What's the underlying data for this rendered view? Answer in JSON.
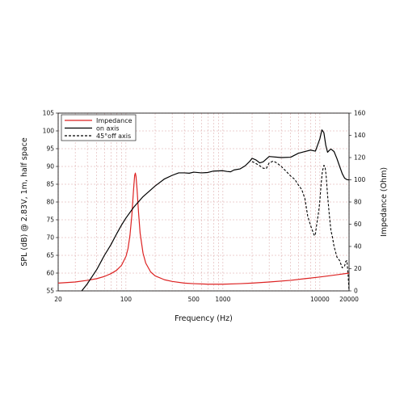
{
  "chart_data": {
    "type": "line",
    "xlabel": "Frequency (Hz)",
    "ylabel": "SPL (dB) @ 2.83V, 1m, half space",
    "y2label": "Impedance (Ohm)",
    "x_scale": "log",
    "xlim": [
      20,
      20000
    ],
    "ylim": [
      55,
      105
    ],
    "y2lim": [
      0,
      160
    ],
    "x_ticks": [
      20,
      100,
      500,
      1000,
      10000,
      20000
    ],
    "x_tick_labels": [
      "20",
      "100",
      "500",
      "1000",
      "10000",
      "20000"
    ],
    "y_ticks": [
      55,
      60,
      65,
      70,
      75,
      80,
      85,
      90,
      95,
      100,
      105
    ],
    "y_tick_labels": [
      "55",
      "60",
      "65",
      "70",
      "75",
      "80",
      "85",
      "90",
      "95",
      "100",
      "105"
    ],
    "y2_ticks": [
      0,
      20,
      40,
      60,
      80,
      100,
      120,
      140,
      160
    ],
    "y2_tick_labels": [
      "0",
      "20",
      "40",
      "60",
      "80",
      "100",
      "120",
      "140",
      "160"
    ],
    "grid": true,
    "legend_position": "top-left",
    "series": [
      {
        "name": "Impedance",
        "axis": "right",
        "color": "#dd2222",
        "dash": "solid",
        "x": [
          20,
          30,
          40,
          50,
          60,
          70,
          80,
          90,
          100,
          105,
          110,
          115,
          120,
          123,
          125,
          127,
          130,
          135,
          140,
          150,
          160,
          180,
          200,
          250,
          300,
          400,
          500,
          700,
          1000,
          1500,
          2000,
          3000,
          5000,
          7000,
          10000,
          15000,
          20000
        ],
        "y": [
          7,
          8,
          9.5,
          11,
          13,
          15.5,
          18.5,
          23,
          31,
          38,
          50,
          68,
          92,
          104,
          106,
          103,
          92,
          70,
          52,
          34,
          25,
          17,
          13.5,
          10,
          8.5,
          7,
          6.5,
          6,
          6,
          6.5,
          7,
          8,
          9.5,
          11,
          12.5,
          14.5,
          16
        ]
      },
      {
        "name": "on axis",
        "axis": "left",
        "color": "#000000",
        "dash": "solid",
        "x": [
          35,
          40,
          50,
          60,
          70,
          80,
          90,
          100,
          120,
          150,
          200,
          250,
          300,
          350,
          400,
          450,
          500,
          600,
          700,
          800,
          1000,
          1100,
          1200,
          1300,
          1500,
          1700,
          1900,
          2000,
          2200,
          2400,
          2600,
          3000,
          4000,
          5000,
          6000,
          7000,
          8000,
          9000,
          10000,
          10500,
          11000,
          11500,
          12000,
          12500,
          13000,
          14000,
          15000,
          16000,
          17000,
          18000,
          19000,
          20000
        ],
        "y": [
          55,
          57,
          61,
          65,
          68,
          71,
          73.5,
          75.5,
          78.5,
          81.5,
          84.5,
          86.5,
          87.5,
          88.2,
          88.2,
          88.1,
          88.4,
          88.2,
          88.3,
          88.7,
          88.8,
          88.6,
          88.5,
          89,
          89.3,
          90.2,
          91.5,
          92.3,
          91.8,
          91,
          91.3,
          92.8,
          92.5,
          92.6,
          93.7,
          94.2,
          94.6,
          94.3,
          97.8,
          100.3,
          99.5,
          96,
          94,
          94.5,
          94.9,
          94.2,
          92.2,
          90,
          88,
          86.7,
          86.3,
          86.2
        ]
      },
      {
        "name": "45°off axis",
        "axis": "left",
        "color": "#000000",
        "dash": "dashed",
        "x": [
          2000,
          2200,
          2400,
          2600,
          2800,
          3000,
          3300,
          3600,
          4000,
          4500,
          5000,
          5500,
          6000,
          6500,
          7000,
          7500,
          8000,
          8500,
          8800,
          9000,
          9200,
          9500,
          9800,
          10000,
          10300,
          10600,
          11000,
          11300,
          11600,
          12000,
          12500,
          13000,
          13500,
          14000,
          14500,
          15000,
          16000,
          17000,
          18000,
          18500,
          19000,
          19500,
          20000
        ],
        "y": [
          91.4,
          90.8,
          90.2,
          89.5,
          89.4,
          91,
          91.5,
          91,
          90,
          88.6,
          87.3,
          86.4,
          84.8,
          83.5,
          81,
          76,
          73.5,
          71.5,
          70.5,
          71,
          73,
          75.5,
          78,
          80.5,
          85,
          88.5,
          90.3,
          90,
          87.5,
          82,
          76.5,
          72,
          70,
          67.5,
          66,
          64.5,
          63.5,
          61.5,
          62,
          63.3,
          63.5,
          60,
          55
        ]
      }
    ]
  }
}
